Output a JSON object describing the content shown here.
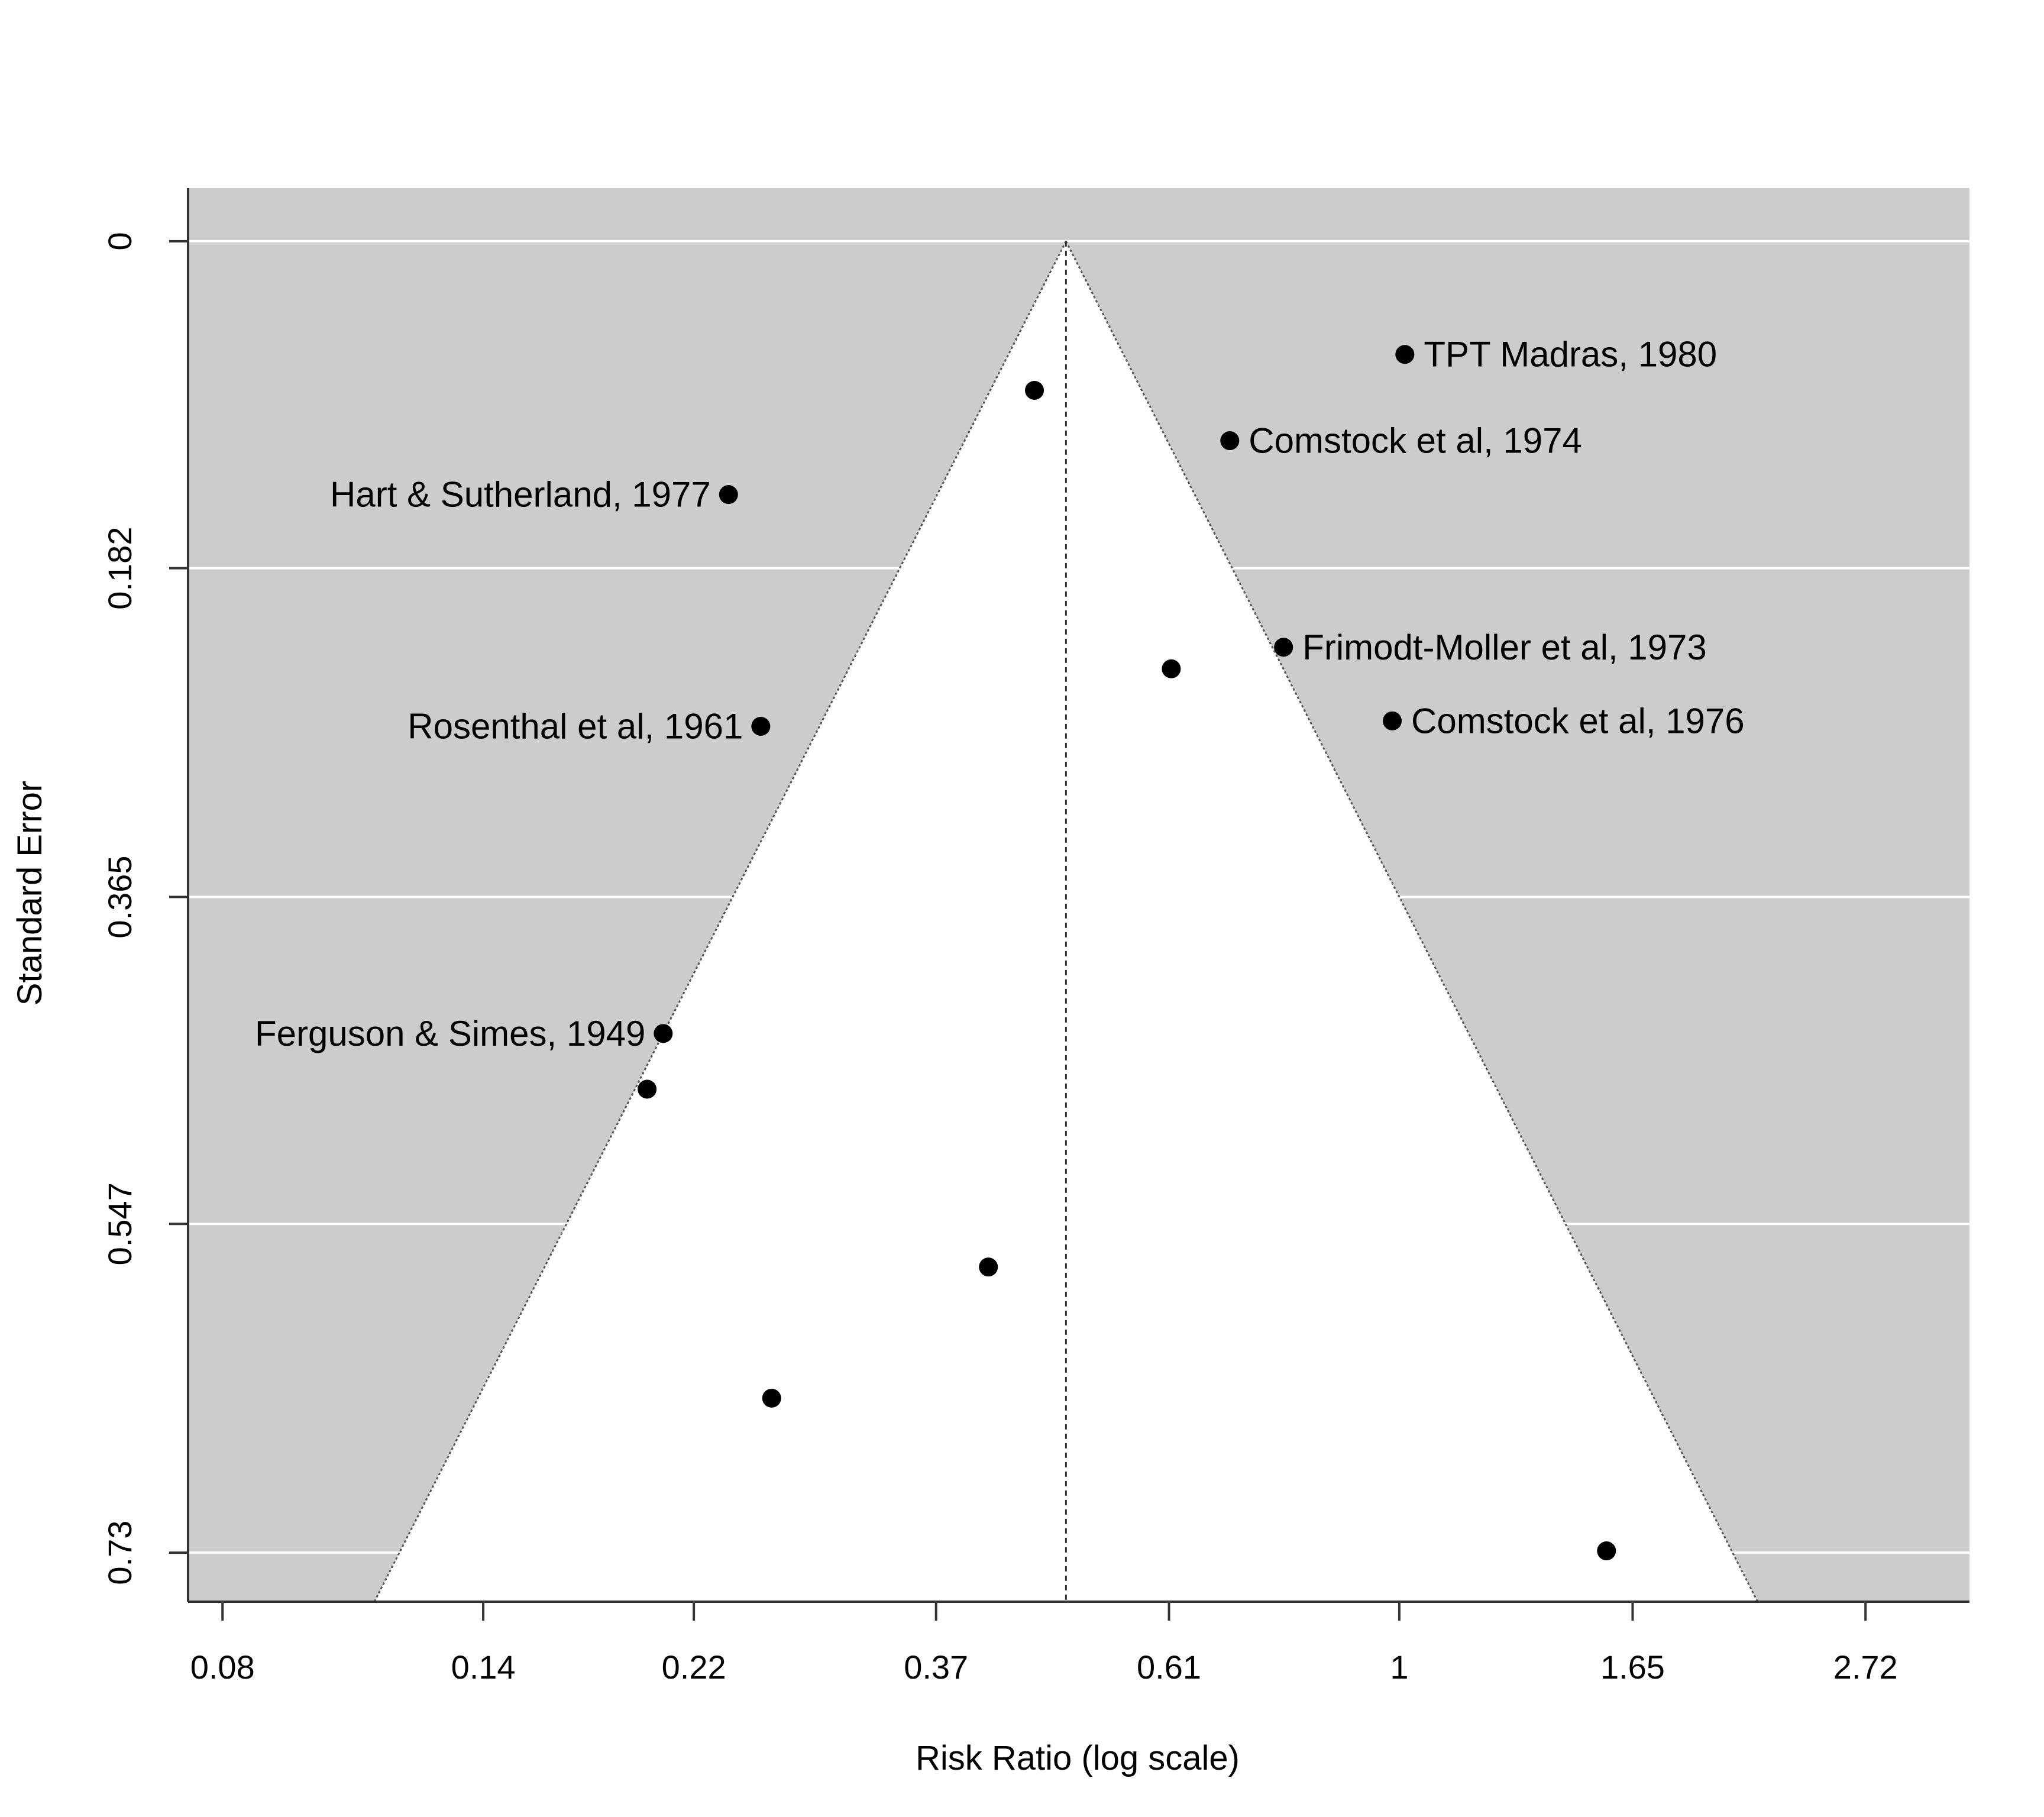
{
  "chart_data": {
    "type": "scatter",
    "subtype": "funnel",
    "title": "",
    "xlabel": "Risk Ratio (log scale)",
    "ylabel": "Standard Error",
    "x_scale": "log",
    "xlim": [
      0.0743,
      3.4
    ],
    "ylim": [
      0.7573,
      -0.0296
    ],
    "x_ticks": [
      {
        "value": 0.08,
        "label": "0.08"
      },
      {
        "value": 0.14,
        "label": "0.14"
      },
      {
        "value": 0.22,
        "label": "0.22"
      },
      {
        "value": 0.37,
        "label": "0.37"
      },
      {
        "value": 0.61,
        "label": "0.61"
      },
      {
        "value": 1.0,
        "label": "1"
      },
      {
        "value": 1.65,
        "label": "1.65"
      },
      {
        "value": 2.72,
        "label": "2.72"
      }
    ],
    "y_ticks": [
      {
        "value": 0,
        "label": "0"
      },
      {
        "value": 0.182,
        "label": "0.182"
      },
      {
        "value": 0.365,
        "label": "0.365"
      },
      {
        "value": 0.547,
        "label": "0.547"
      },
      {
        "value": 0.73,
        "label": "0.73"
      }
    ],
    "grid": true,
    "grid_axis": "y",
    "legend": "none",
    "funnel": {
      "center": 0.489,
      "z": 1.96,
      "se_max": 0.7573,
      "outside_color": "#cccccc",
      "inside_color": "#ffffff",
      "line_style": "dotted"
    },
    "points": [
      {
        "x": 1.012,
        "y": 0.063,
        "label": "TPT Madras, 1980"
      },
      {
        "x": 0.457,
        "y": 0.083,
        "label": ""
      },
      {
        "x": 0.695,
        "y": 0.111,
        "label": "Comstock et al, 1974"
      },
      {
        "x": 0.237,
        "y": 0.141,
        "label": "Hart & Sutherland, 1977"
      },
      {
        "x": 0.78,
        "y": 0.226,
        "label": "Frimodt-Moller et al, 1973"
      },
      {
        "x": 0.613,
        "y": 0.238,
        "label": ""
      },
      {
        "x": 0.985,
        "y": 0.267,
        "label": "Comstock et al, 1976"
      },
      {
        "x": 0.254,
        "y": 0.27,
        "label": "Rosenthal et al, 1961"
      },
      {
        "x": 0.206,
        "y": 0.441,
        "label": "Ferguson & Simes, 1949"
      },
      {
        "x": 0.199,
        "y": 0.472,
        "label": ""
      },
      {
        "x": 0.414,
        "y": 0.571,
        "label": ""
      },
      {
        "x": 0.26,
        "y": 0.644,
        "label": ""
      },
      {
        "x": 1.56,
        "y": 0.729,
        "label": ""
      }
    ],
    "colors": {
      "panel_background": "#cccccc",
      "grid": "#ffffff",
      "points": "#000000",
      "axis": "#333333"
    }
  }
}
